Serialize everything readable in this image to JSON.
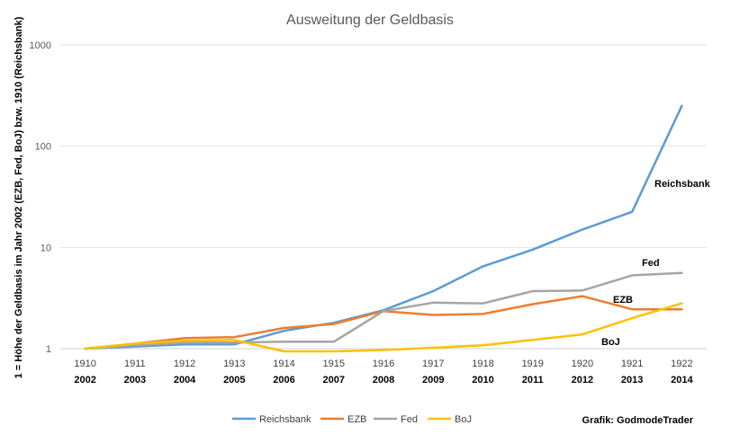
{
  "chart_data": {
    "type": "line",
    "title": "Ausweitung der Geldbasis",
    "ylabel": "1 = Höhe der Geldbasis im Jahr 2002 (EZB, Fed, BoJ) bzw. 1910 (Reichsbank)",
    "xlabel": "",
    "yscale": "log",
    "ylim": [
      1,
      1000
    ],
    "yticks": [
      "1",
      "10",
      "100",
      "1000"
    ],
    "grid": "horizontal",
    "legend": "bottom",
    "categories_top": [
      "1910",
      "1911",
      "1912",
      "1913",
      "1914",
      "1915",
      "1916",
      "1917",
      "1918",
      "1919",
      "1920",
      "1921",
      "1922"
    ],
    "categories_bottom": [
      "2002",
      "2003",
      "2004",
      "2005",
      "2006",
      "2007",
      "2008",
      "2009",
      "2010",
      "2011",
      "2012",
      "2013",
      "2014"
    ],
    "series": [
      {
        "name": "Reichsbank",
        "color": "#5B9BD5",
        "label": "Reichsbank",
        "values": [
          1.0,
          1.05,
          1.1,
          1.1,
          1.5,
          1.8,
          2.4,
          3.7,
          6.5,
          9.5,
          15,
          22.5,
          250
        ]
      },
      {
        "name": "EZB",
        "color": "#ED7D31",
        "label": "EZB",
        "values": [
          1.0,
          1.12,
          1.27,
          1.3,
          1.6,
          1.75,
          2.35,
          2.15,
          2.2,
          2.75,
          3.3,
          2.45,
          2.45
        ]
      },
      {
        "name": "Fed",
        "color": "#A5A5A5",
        "label": "Fed",
        "values": [
          1.0,
          1.08,
          1.15,
          1.15,
          1.17,
          1.17,
          2.35,
          2.85,
          2.8,
          3.7,
          3.75,
          5.3,
          5.6
        ]
      },
      {
        "name": "BoJ",
        "color": "#FFC000",
        "label": "BoJ",
        "values": [
          1.0,
          1.12,
          1.2,
          1.22,
          0.94,
          0.94,
          0.97,
          1.02,
          1.08,
          1.22,
          1.38,
          2.0,
          2.8
        ]
      }
    ],
    "credit": "Grafik: GodmodeTrader"
  }
}
